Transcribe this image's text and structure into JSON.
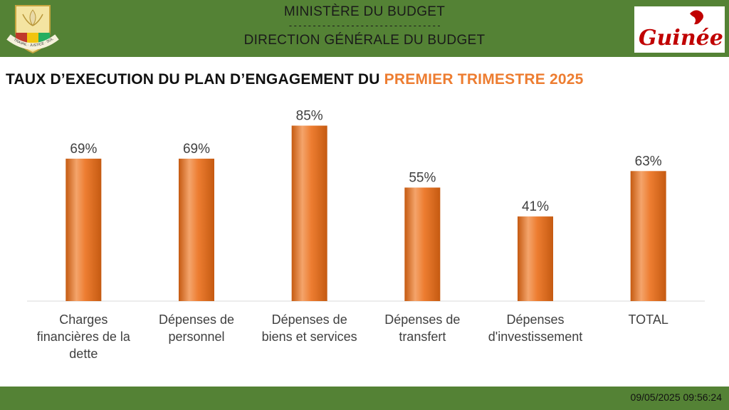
{
  "header": {
    "ministry": "MINISTÈRE DU BUDGET",
    "separator": "--------------------------------",
    "direction": "DIRECTION GÉNÉRALE DU BUDGET",
    "emblem_labels": [
      "TRAVAIL",
      "JUSTICE",
      "SOLIDARITÉ"
    ],
    "brand_text": "Guinée"
  },
  "title": {
    "prefix": "TAUX D’EXECUTION DU PLAN D’ENGAGEMENT DU ",
    "highlight": "PREMIER TRIMESTRE 2025"
  },
  "chart_data": {
    "type": "bar",
    "categories": [
      "Charges financières de la dette",
      "Dépenses de personnel",
      "Dépenses de biens et services",
      "Dépenses de transfert",
      "Dépenses d'investissement",
      "TOTAL"
    ],
    "category_lines": [
      [
        "Charges",
        "financières de la",
        "dette"
      ],
      [
        "Dépenses de",
        "personnel"
      ],
      [
        "Dépenses de",
        "biens et services"
      ],
      [
        "Dépenses de",
        "transfert"
      ],
      [
        "Dépenses",
        "d'investissement"
      ],
      [
        "TOTAL"
      ]
    ],
    "values": [
      69,
      69,
      85,
      55,
      41,
      63
    ],
    "value_labels": [
      "69%",
      "69%",
      "85%",
      "55%",
      "41%",
      "63%"
    ],
    "unit": "%",
    "ylim": [
      0,
      100
    ],
    "grid": false,
    "legend": "none",
    "bar_color": "#ED7D31"
  },
  "footer": {
    "timestamp": "09/05/2025 09:56:24"
  },
  "colors": {
    "header_green": "#548235",
    "accent_orange": "#ED7D31",
    "brand_red": "#C00000"
  }
}
